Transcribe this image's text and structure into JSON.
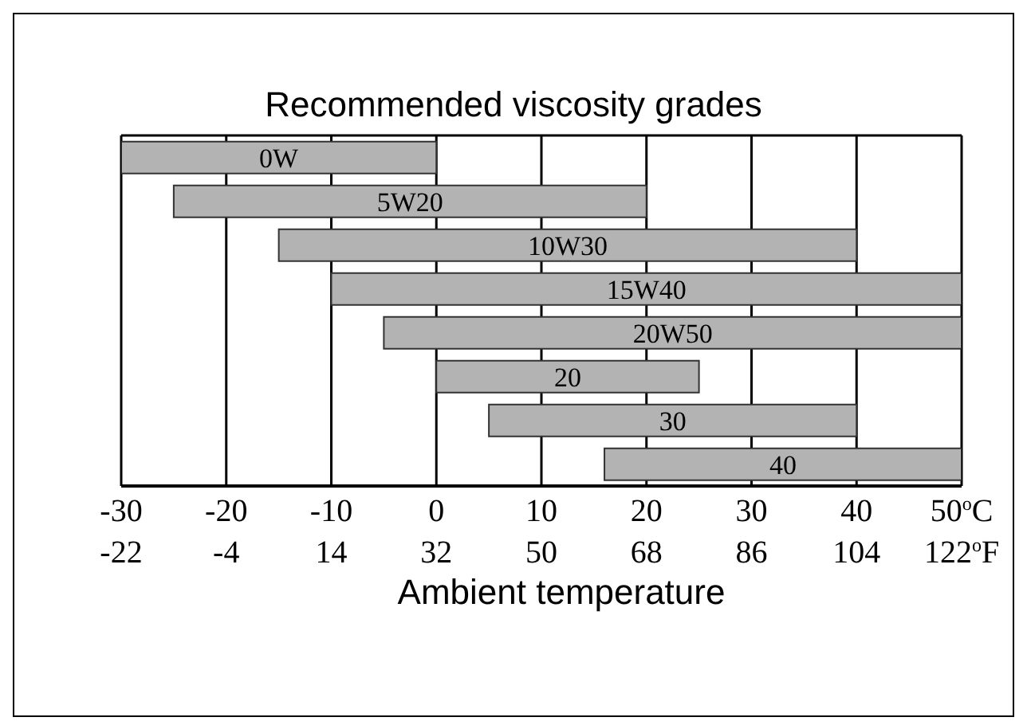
{
  "chart_data": {
    "type": "bar",
    "orientation": "horizontal",
    "title": "Recommended viscosity grades",
    "xlabel": "Ambient temperature",
    "categories": [
      "0W",
      "5W20",
      "10W30",
      "15W40",
      "20W50",
      "20",
      "30",
      "40"
    ],
    "base": [
      -30,
      -25,
      -15,
      -10,
      -5,
      0,
      5,
      16
    ],
    "values": [
      30,
      45,
      55,
      60,
      55,
      25,
      35,
      34
    ],
    "color": "#b3b3b3",
    "xlim": [
      -30,
      50
    ],
    "xticks": [
      -30,
      -20,
      -10,
      0,
      10,
      20,
      30,
      40,
      {
        "value": 50,
        "label": "50$^{o}$C"
      }
    ],
    "x2lim": [
      -22,
      122
    ],
    "x2ticks": [
      -22,
      -4,
      14,
      32,
      50,
      68,
      86,
      104,
      {
        "value": 122,
        "label": "122$^{o}$F"
      }
    ],
    "grid": "x"
  }
}
